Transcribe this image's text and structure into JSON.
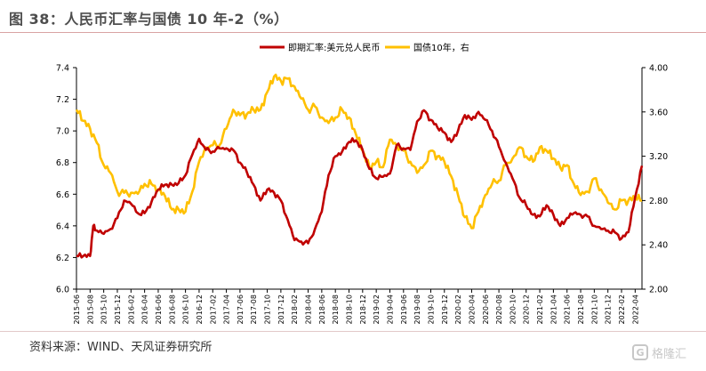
{
  "figure": {
    "title": "图 38：人民币汇率与国债 10 年-2（%）",
    "source": "资料来源：WIND、天风证券研究所",
    "watermark_text": "格隆汇",
    "watermark_logo": "G"
  },
  "colors": {
    "fx": "#c00000",
    "bond": "#ffc000",
    "axis": "#000000",
    "text": "#333333"
  },
  "chart_data": {
    "type": "line",
    "legend_position": "top-center",
    "grid": false,
    "x_tick_labels": [
      "2015-06",
      "2015-08",
      "2015-10",
      "2015-12",
      "2016-02",
      "2016-04",
      "2016-06",
      "2016-08",
      "2016-10",
      "2016-12",
      "2017-02",
      "2017-04",
      "2017-06",
      "2017-08",
      "2017-10",
      "2017-12",
      "2018-02",
      "2018-04",
      "2018-06",
      "2018-08",
      "2018-10",
      "2018-12",
      "2019-02",
      "2019-04",
      "2019-06",
      "2019-08",
      "2019-10",
      "2019-12",
      "2020-02",
      "2020-04",
      "2020-06",
      "2020-08",
      "2020-10",
      "2020-12",
      "2021-02",
      "2021-04",
      "2021-06",
      "2021-08",
      "2021-10",
      "2021-12",
      "2022-02",
      "2022-04"
    ],
    "x_range": [
      "2015-06",
      "2022-05"
    ],
    "y_left": {
      "min": 6.0,
      "max": 7.4,
      "ticks": [
        "6.0",
        "6.2",
        "6.4",
        "6.6",
        "6.8",
        "7.0",
        "7.2",
        "7.4"
      ]
    },
    "y_right": {
      "min": 2.0,
      "max": 4.0,
      "ticks": [
        "2.00",
        "2.40",
        "2.80",
        "3.20",
        "3.60",
        "4.00"
      ]
    },
    "series": [
      {
        "name": "即期汇率:美元兑人民币",
        "axis": "left",
        "color": "#c00000",
        "points": [
          [
            "2015-06",
            6.21
          ],
          [
            "2015-07",
            6.21
          ],
          [
            "2015-08",
            6.21
          ],
          [
            "2015-08-15",
            6.4
          ],
          [
            "2015-09",
            6.37
          ],
          [
            "2015-10",
            6.35
          ],
          [
            "2015-11",
            6.38
          ],
          [
            "2015-12",
            6.45
          ],
          [
            "2016-01",
            6.56
          ],
          [
            "2016-02",
            6.54
          ],
          [
            "2016-03",
            6.48
          ],
          [
            "2016-04",
            6.48
          ],
          [
            "2016-05",
            6.55
          ],
          [
            "2016-06",
            6.63
          ],
          [
            "2016-07",
            6.66
          ],
          [
            "2016-08",
            6.66
          ],
          [
            "2016-09",
            6.67
          ],
          [
            "2016-10",
            6.72
          ],
          [
            "2016-11",
            6.85
          ],
          [
            "2016-12",
            6.95
          ],
          [
            "2017-01",
            6.88
          ],
          [
            "2017-02",
            6.87
          ],
          [
            "2017-03",
            6.89
          ],
          [
            "2017-04",
            6.89
          ],
          [
            "2017-05",
            6.88
          ],
          [
            "2017-06",
            6.8
          ],
          [
            "2017-07",
            6.74
          ],
          [
            "2017-08",
            6.66
          ],
          [
            "2017-09",
            6.56
          ],
          [
            "2017-10",
            6.63
          ],
          [
            "2017-11",
            6.61
          ],
          [
            "2017-12",
            6.56
          ],
          [
            "2018-01",
            6.44
          ],
          [
            "2018-02",
            6.31
          ],
          [
            "2018-03",
            6.3
          ],
          [
            "2018-04",
            6.29
          ],
          [
            "2018-05",
            6.38
          ],
          [
            "2018-06",
            6.49
          ],
          [
            "2018-07",
            6.72
          ],
          [
            "2018-08",
            6.84
          ],
          [
            "2018-09",
            6.87
          ],
          [
            "2018-10",
            6.93
          ],
          [
            "2018-11",
            6.94
          ],
          [
            "2018-12",
            6.88
          ],
          [
            "2019-01",
            6.76
          ],
          [
            "2019-02",
            6.7
          ],
          [
            "2019-03",
            6.71
          ],
          [
            "2019-04",
            6.73
          ],
          [
            "2019-05",
            6.91
          ],
          [
            "2019-06",
            6.89
          ],
          [
            "2019-07",
            6.88
          ],
          [
            "2019-08",
            7.06
          ],
          [
            "2019-09",
            7.13
          ],
          [
            "2019-10",
            7.07
          ],
          [
            "2019-11",
            7.02
          ],
          [
            "2019-12",
            6.99
          ],
          [
            "2020-01",
            6.93
          ],
          [
            "2020-02",
            7.0
          ],
          [
            "2020-03",
            7.1
          ],
          [
            "2020-04",
            7.07
          ],
          [
            "2020-05",
            7.12
          ],
          [
            "2020-06",
            7.07
          ],
          [
            "2020-07",
            7.0
          ],
          [
            "2020-08",
            6.9
          ],
          [
            "2020-09",
            6.8
          ],
          [
            "2020-10",
            6.7
          ],
          [
            "2020-11",
            6.58
          ],
          [
            "2020-12",
            6.53
          ],
          [
            "2021-01",
            6.47
          ],
          [
            "2021-02",
            6.46
          ],
          [
            "2021-03",
            6.53
          ],
          [
            "2021-04",
            6.47
          ],
          [
            "2021-05",
            6.4
          ],
          [
            "2021-06",
            6.45
          ],
          [
            "2021-07",
            6.48
          ],
          [
            "2021-08",
            6.47
          ],
          [
            "2021-09",
            6.46
          ],
          [
            "2021-10",
            6.4
          ],
          [
            "2021-11",
            6.38
          ],
          [
            "2021-12",
            6.37
          ],
          [
            "2022-01",
            6.36
          ],
          [
            "2022-02",
            6.32
          ],
          [
            "2022-03",
            6.36
          ],
          [
            "2022-04",
            6.58
          ],
          [
            "2022-05",
            6.78
          ]
        ]
      },
      {
        "name": "国债10年，右",
        "axis": "right",
        "color": "#ffc000",
        "points": [
          [
            "2015-06",
            3.62
          ],
          [
            "2015-07",
            3.52
          ],
          [
            "2015-08",
            3.45
          ],
          [
            "2015-09",
            3.32
          ],
          [
            "2015-10",
            3.12
          ],
          [
            "2015-11",
            3.05
          ],
          [
            "2015-12",
            2.88
          ],
          [
            "2016-01",
            2.87
          ],
          [
            "2016-02",
            2.87
          ],
          [
            "2016-03",
            2.86
          ],
          [
            "2016-04",
            2.95
          ],
          [
            "2016-05",
            2.95
          ],
          [
            "2016-06",
            2.9
          ],
          [
            "2016-07",
            2.84
          ],
          [
            "2016-08",
            2.72
          ],
          [
            "2016-09",
            2.72
          ],
          [
            "2016-10",
            2.7
          ],
          [
            "2016-11",
            2.88
          ],
          [
            "2016-12",
            3.15
          ],
          [
            "2017-01",
            3.28
          ],
          [
            "2017-02",
            3.3
          ],
          [
            "2017-03",
            3.3
          ],
          [
            "2017-04",
            3.45
          ],
          [
            "2017-05",
            3.62
          ],
          [
            "2017-06",
            3.57
          ],
          [
            "2017-07",
            3.58
          ],
          [
            "2017-08",
            3.62
          ],
          [
            "2017-09",
            3.62
          ],
          [
            "2017-10",
            3.78
          ],
          [
            "2017-11",
            3.92
          ],
          [
            "2017-12",
            3.88
          ],
          [
            "2018-01",
            3.9
          ],
          [
            "2018-02",
            3.83
          ],
          [
            "2018-03",
            3.72
          ],
          [
            "2018-04",
            3.62
          ],
          [
            "2018-05",
            3.65
          ],
          [
            "2018-06",
            3.55
          ],
          [
            "2018-07",
            3.5
          ],
          [
            "2018-08",
            3.55
          ],
          [
            "2018-09",
            3.62
          ],
          [
            "2018-10",
            3.55
          ],
          [
            "2018-11",
            3.4
          ],
          [
            "2018-12",
            3.25
          ],
          [
            "2019-01",
            3.1
          ],
          [
            "2019-02",
            3.15
          ],
          [
            "2019-03",
            3.1
          ],
          [
            "2019-04",
            3.35
          ],
          [
            "2019-05",
            3.3
          ],
          [
            "2019-06",
            3.25
          ],
          [
            "2019-07",
            3.15
          ],
          [
            "2019-08",
            3.05
          ],
          [
            "2019-09",
            3.12
          ],
          [
            "2019-10",
            3.25
          ],
          [
            "2019-11",
            3.2
          ],
          [
            "2019-12",
            3.15
          ],
          [
            "2020-01",
            3.02
          ],
          [
            "2020-02",
            2.85
          ],
          [
            "2020-03",
            2.65
          ],
          [
            "2020-04",
            2.55
          ],
          [
            "2020-05",
            2.7
          ],
          [
            "2020-06",
            2.85
          ],
          [
            "2020-07",
            2.95
          ],
          [
            "2020-08",
            2.98
          ],
          [
            "2020-09",
            3.12
          ],
          [
            "2020-10",
            3.18
          ],
          [
            "2020-11",
            3.28
          ],
          [
            "2020-12",
            3.2
          ],
          [
            "2021-01",
            3.15
          ],
          [
            "2021-02",
            3.28
          ],
          [
            "2021-03",
            3.25
          ],
          [
            "2021-04",
            3.18
          ],
          [
            "2021-05",
            3.1
          ],
          [
            "2021-06",
            3.12
          ],
          [
            "2021-07",
            2.95
          ],
          [
            "2021-08",
            2.85
          ],
          [
            "2021-09",
            2.88
          ],
          [
            "2021-10",
            3.0
          ],
          [
            "2021-11",
            2.9
          ],
          [
            "2021-12",
            2.78
          ],
          [
            "2022-01",
            2.72
          ],
          [
            "2022-02",
            2.8
          ],
          [
            "2022-03",
            2.8
          ],
          [
            "2022-04",
            2.83
          ],
          [
            "2022-05",
            2.8
          ]
        ]
      }
    ]
  }
}
